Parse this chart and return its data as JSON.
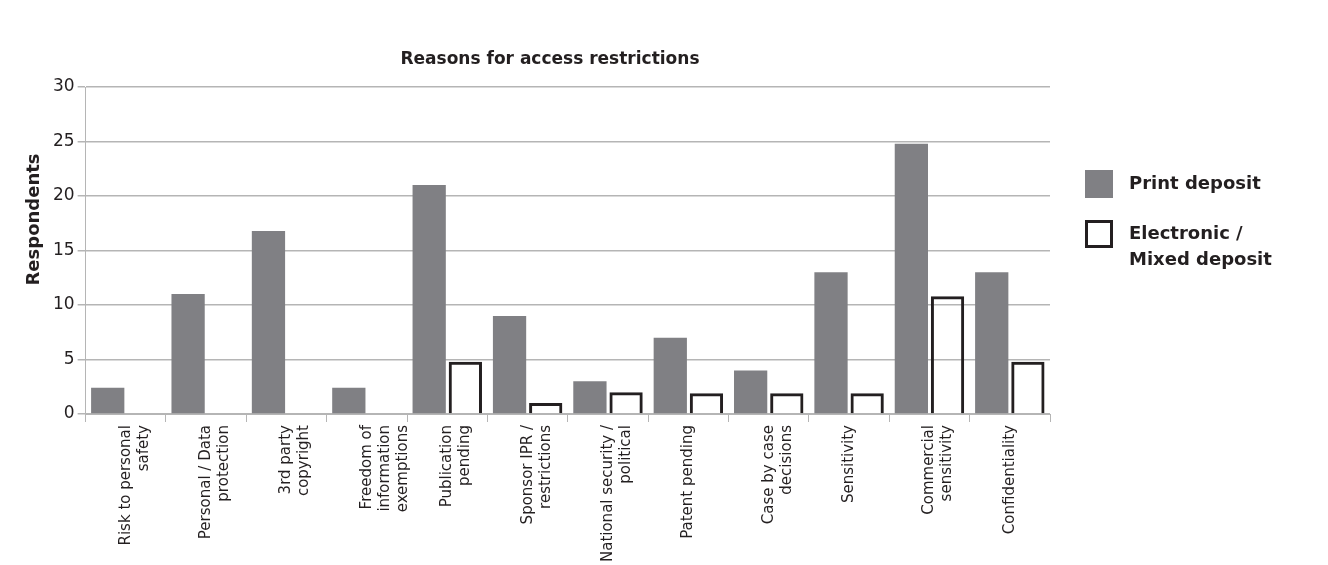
{
  "chart_data": {
    "type": "bar",
    "title": "Reasons for access restrictions",
    "ylabel": "Respondents",
    "categories": [
      "Risk to personal safety",
      "Personal / Data protection",
      "3rd party copyright",
      "Freedom of information exemptions",
      "Publication pending",
      "Sponsor IPR / restrictions",
      "National security / political",
      "Patent pending",
      "Case by case decisions",
      "Sensitivity",
      "Commercial sensitivity",
      "Confidentiality"
    ],
    "series": [
      {
        "name": "Print deposit",
        "color": "#808084",
        "values": [
          2.4,
          11,
          16.8,
          2.4,
          21,
          9,
          3,
          7,
          4,
          13,
          24.8,
          13
        ]
      },
      {
        "name": "Electronic / Mixed deposit",
        "color": "#231f20",
        "values": [
          0,
          0,
          0,
          0,
          4.8,
          1,
          2,
          1.9,
          1.9,
          1.9,
          10.8,
          4.8
        ]
      }
    ],
    "ylim": [
      0,
      30
    ],
    "yticks": [
      0,
      5,
      10,
      15,
      20,
      25,
      30
    ],
    "grid": "y",
    "legend": "right"
  }
}
